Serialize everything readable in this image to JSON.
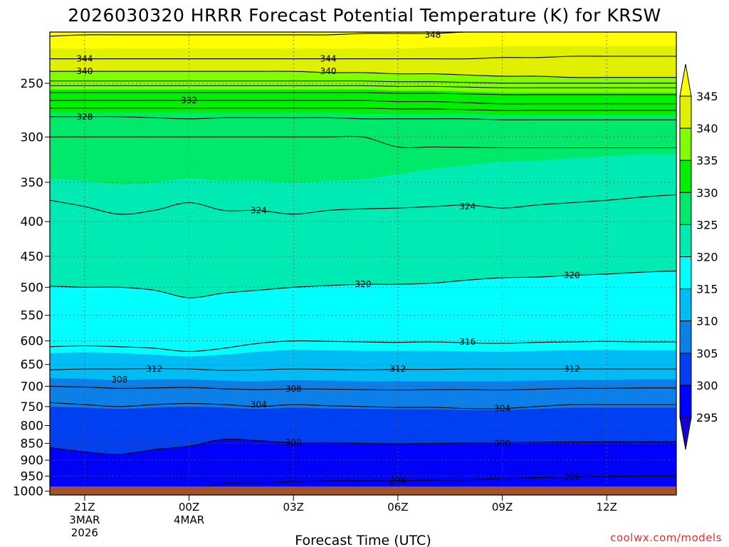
{
  "title": "2026030320 HRRR Forecast Potential Temperature (K) for KRSW",
  "xlabel": "Forecast Time (UTC)",
  "credit": "coolwx.com/models",
  "colors": {
    "ground": "#a0522d",
    "bands": [
      "#1a00d0",
      "#0000ff",
      "#0040f0",
      "#0c80e8",
      "#00bcf5",
      "#00ffff",
      "#00ebb4",
      "#00e96a",
      "#00f000",
      "#7fff00",
      "#e0f000",
      "#ffff00"
    ]
  },
  "chart_data": {
    "type": "contour",
    "variable": "Potential Temperature (K)",
    "yaxis": {
      "scale": "log",
      "reversed": true,
      "range": [
        1013,
        210
      ],
      "ticks": [
        250,
        300,
        350,
        400,
        450,
        500,
        550,
        600,
        650,
        700,
        750,
        800,
        850,
        900,
        950,
        1000
      ]
    },
    "xaxis": {
      "range_hours": [
        -1,
        17
      ],
      "ticks": [
        {
          "hour": 0,
          "label": "21Z",
          "sub1": "3MAR",
          "sub2": "2026"
        },
        {
          "hour": 3,
          "label": "00Z",
          "sub1": "4MAR",
          "sub2": ""
        },
        {
          "hour": 6,
          "label": "03Z",
          "sub1": "",
          "sub2": ""
        },
        {
          "hour": 9,
          "label": "06Z",
          "sub1": "",
          "sub2": ""
        },
        {
          "hour": 12,
          "label": "09Z",
          "sub1": "",
          "sub2": ""
        },
        {
          "hour": 15,
          "label": "12Z",
          "sub1": "",
          "sub2": ""
        }
      ]
    },
    "colorbar": {
      "levels": [
        345,
        340,
        335,
        330,
        325,
        320,
        315,
        310,
        305,
        300,
        295
      ],
      "extend": "both"
    },
    "times": [
      -1,
      0,
      1,
      2,
      3,
      4,
      5,
      6,
      7,
      8,
      9,
      10,
      11,
      12,
      13,
      14,
      15,
      16,
      17
    ],
    "contours": [
      {
        "level": 296,
        "p": [
          1013,
          1013,
          1013,
          1013,
          995,
          975,
          972,
          968,
          965,
          965,
          965,
          963,
          962,
          958,
          955,
          952,
          951,
          950,
          950
        ]
      },
      {
        "level": 300,
        "p": [
          862,
          875,
          882,
          868,
          858,
          838,
          842,
          848,
          848,
          850,
          851,
          850,
          849,
          848,
          847,
          846,
          845,
          845,
          845
        ]
      },
      {
        "level": 304,
        "p": [
          740,
          745,
          750,
          745,
          742,
          745,
          750,
          745,
          748,
          750,
          752,
          752,
          755,
          755,
          750,
          745,
          745,
          745,
          745
        ]
      },
      {
        "level": 308,
        "p": [
          700,
          702,
          705,
          704,
          703,
          706,
          708,
          706,
          707,
          708,
          709,
          708,
          708,
          709,
          707,
          705,
          705,
          704,
          704
        ]
      },
      {
        "level": 312,
        "p": [
          662,
          660,
          660,
          659,
          660,
          663,
          662,
          660,
          661,
          662,
          661,
          661,
          660,
          660,
          660,
          660,
          660,
          660,
          660
        ]
      },
      {
        "level": 316,
        "p": [
          612,
          610,
          612,
          615,
          622,
          615,
          605,
          600,
          601,
          602,
          603,
          602,
          604,
          605,
          603,
          602,
          601,
          602,
          602
        ]
      },
      {
        "level": 320,
        "p": [
          498,
          500,
          500,
          505,
          518,
          510,
          505,
          500,
          497,
          495,
          495,
          493,
          488,
          484,
          483,
          480,
          478,
          475,
          473
        ]
      },
      {
        "level": 324,
        "p": [
          372,
          380,
          390,
          385,
          375,
          385,
          385,
          390,
          385,
          383,
          382,
          380,
          378,
          382,
          378,
          375,
          372,
          368,
          365
        ]
      },
      {
        "level": 328,
        "p": [
          280,
          280,
          280,
          281,
          282,
          281,
          281,
          281,
          281,
          282,
          282,
          282,
          282,
          283,
          283,
          283,
          283,
          283,
          283
        ]
      },
      {
        "level": 332,
        "p": [
          265,
          265,
          265,
          265,
          265,
          265,
          265,
          265,
          265,
          265,
          266,
          266,
          267,
          268,
          268,
          268,
          268,
          268,
          268
        ]
      },
      {
        "level": 340,
        "p": [
          240,
          240,
          240,
          240,
          240,
          240,
          240,
          240,
          241,
          241,
          242,
          242,
          243,
          244,
          244,
          245,
          245,
          245,
          245
        ]
      },
      {
        "level": 344,
        "p": [
          230,
          230,
          230,
          230,
          230,
          230,
          230,
          230,
          230,
          230,
          230,
          230,
          230,
          229,
          229,
          228,
          228,
          228,
          228
        ]
      },
      {
        "level": 348,
        "p": [
          213,
          212,
          212,
          212,
          212,
          212,
          212,
          212,
          212,
          211,
          211,
          211,
          210,
          210,
          210,
          210,
          210,
          210,
          210
        ]
      }
    ],
    "band_boundaries": [
      {
        "level": 295,
        "p": [
          1013,
          1013,
          1013,
          1013,
          1013,
          1013,
          1013,
          1013,
          1013,
          1013,
          1013,
          1013,
          1013,
          1013,
          1013,
          1013,
          1013,
          1013,
          1013
        ]
      },
      {
        "level": 300,
        "p": [
          862,
          875,
          882,
          868,
          858,
          838,
          842,
          848,
          848,
          850,
          851,
          850,
          849,
          848,
          847,
          846,
          845,
          845,
          845
        ]
      },
      {
        "level": 305,
        "p": [
          750,
          752,
          755,
          752,
          750,
          752,
          755,
          752,
          754,
          755,
          756,
          756,
          758,
          758,
          755,
          752,
          752,
          752,
          752
        ]
      },
      {
        "level": 310,
        "p": [
          680,
          682,
          684,
          683,
          683,
          686,
          687,
          685,
          686,
          687,
          687,
          687,
          687,
          687,
          686,
          684,
          684,
          683,
          683
        ]
      },
      {
        "level": 315,
        "p": [
          625,
          623,
          625,
          628,
          632,
          628,
          622,
          618,
          619,
          620,
          620,
          620,
          621,
          622,
          620,
          619,
          618,
          619,
          619
        ]
      },
      {
        "level": 320,
        "p": [
          498,
          500,
          500,
          505,
          518,
          510,
          505,
          500,
          497,
          495,
          495,
          493,
          488,
          484,
          483,
          480,
          478,
          475,
          473
        ]
      },
      {
        "level": 325,
        "p": [
          345,
          348,
          352,
          350,
          345,
          348,
          348,
          350,
          348,
          346,
          340,
          334,
          330,
          326,
          325,
          322,
          320,
          318,
          318
        ]
      },
      {
        "level": 330,
        "p": [
          276,
          276,
          276,
          276,
          276,
          276,
          276,
          276,
          276,
          277,
          277,
          277,
          277,
          278,
          278,
          278,
          278,
          278,
          278
        ]
      },
      {
        "level": 335,
        "p": [
          255,
          255,
          255,
          255,
          255,
          255,
          255,
          255,
          255,
          255,
          256,
          256,
          257,
          258,
          258,
          258,
          258,
          258,
          258
        ]
      },
      {
        "level": 340,
        "p": [
          240,
          240,
          240,
          240,
          240,
          240,
          240,
          240,
          241,
          241,
          242,
          242,
          243,
          244,
          244,
          245,
          245,
          245,
          245
        ]
      },
      {
        "level": 345,
        "p": [
          222,
          222,
          222,
          222,
          222,
          222,
          222,
          222,
          222,
          222,
          222,
          221,
          221,
          220,
          220,
          220,
          220,
          220,
          220
        ]
      }
    ],
    "labels": [
      {
        "text": "344",
        "hour": 0,
        "p": 230
      },
      {
        "text": "344",
        "hour": 7,
        "p": 230
      },
      {
        "text": "340",
        "hour": 0,
        "p": 240
      },
      {
        "text": "340",
        "hour": 7,
        "p": 240
      },
      {
        "text": "332",
        "hour": 3,
        "p": 265
      },
      {
        "text": "328",
        "hour": 0,
        "p": 280
      },
      {
        "text": "348",
        "hour": 10,
        "p": 212
      },
      {
        "text": "324",
        "hour": 5,
        "p": 385
      },
      {
        "text": "324",
        "hour": 11,
        "p": 380
      },
      {
        "text": "320",
        "hour": 8,
        "p": 495
      },
      {
        "text": "320",
        "hour": 14,
        "p": 480
      },
      {
        "text": "316",
        "hour": 11,
        "p": 602
      },
      {
        "text": "312",
        "hour": 2,
        "p": 660
      },
      {
        "text": "312",
        "hour": 9,
        "p": 660
      },
      {
        "text": "312",
        "hour": 14,
        "p": 660
      },
      {
        "text": "308",
        "hour": 1,
        "p": 684
      },
      {
        "text": "308",
        "hour": 6,
        "p": 706
      },
      {
        "text": "304",
        "hour": 5,
        "p": 745
      },
      {
        "text": "304",
        "hour": 12,
        "p": 755
      },
      {
        "text": "300",
        "hour": 6,
        "p": 848
      },
      {
        "text": "300",
        "hour": 12,
        "p": 850
      },
      {
        "text": "296",
        "hour": 9,
        "p": 965
      },
      {
        "text": "296",
        "hour": 14,
        "p": 952
      }
    ]
  }
}
